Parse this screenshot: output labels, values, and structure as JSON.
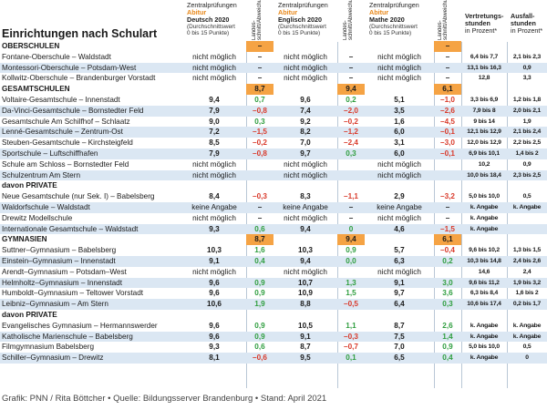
{
  "title": "Einrichtungen nach Schulart",
  "headers": {
    "deutsch": {
      "l1": "Zentralprüfungen",
      "l2": "Abitur",
      "l3": "Deutsch 2020",
      "l4": "(Durchschnittswert",
      "l5": "0 bis 15 Punkte)"
    },
    "englisch": {
      "l1": "Zentralprüfungen",
      "l2": "Abitur",
      "l3": "Englisch 2020",
      "l4": "(Durchschnittswert",
      "l5": "0 bis 15 Punkte)"
    },
    "mathe": {
      "l1": "Zentralprüfungen",
      "l2": "Abitur",
      "l3": "Mathe 2020",
      "l4": "(Durchschnittswert",
      "l5": "0 bis 15 Punkte)"
    },
    "deviation": "Landes-schnitt/Abweichung",
    "vertretung": {
      "l1": "Vertretungs-",
      "l2": "stunden",
      "l3": "in Prozent*"
    },
    "ausfall": {
      "l1": "Ausfall-",
      "l2": "stunden",
      "l3": "in Prozent*"
    }
  },
  "rows": [
    {
      "type": "section",
      "name": "OBERSCHULEN",
      "d": "",
      "dd": "–",
      "e": "",
      "ed": "",
      "m": "",
      "md": "–",
      "v": "",
      "a": "",
      "box": [
        true,
        false,
        true
      ]
    },
    {
      "type": "row",
      "name": "Fontane-Oberschule – Waldstadt",
      "d": "nicht möglich",
      "dd": "–",
      "e": "nicht möglich",
      "ed": "–",
      "m": "nicht möglich",
      "md": "–",
      "v": "6,4 bis 7,7",
      "a": "2,1 bis 2,3"
    },
    {
      "type": "row",
      "name": "Montessori-Oberschule – Potsdam-West",
      "d": "nicht möglich",
      "dd": "–",
      "e": "nicht möglich",
      "ed": "–",
      "m": "nicht möglich",
      "md": "–",
      "v": "13,1 bis 16,3",
      "a": "0,9"
    },
    {
      "type": "row",
      "name": "Kollwitz-Oberschule – Brandenburger Vorstadt",
      "d": "nicht möglich",
      "dd": "–",
      "e": "nicht möglich",
      "ed": "–",
      "m": "nicht möglich",
      "md": "–",
      "v": "12,8",
      "a": "3,3"
    },
    {
      "type": "section",
      "name": "GESAMTSCHULEN",
      "d": "",
      "dd": "8,7",
      "e": "",
      "ed": "9,4",
      "m": "",
      "md": "6,1",
      "v": "",
      "a": "",
      "box": [
        true,
        true,
        true
      ]
    },
    {
      "type": "row",
      "name": "Voltaire-Gesamtschule – Innenstadt",
      "d": "9,4",
      "dd": "0,7",
      "e": "9,6",
      "ed": "0,2",
      "m": "5,1",
      "md": "–1,0",
      "v": "3,3 bis 6,9",
      "a": "1,2 bis 1,8"
    },
    {
      "type": "row",
      "name": "Da-Vinci-Gesamtschule – Bornstedter Feld",
      "d": "7,9",
      "dd": "–0,8",
      "e": "7,4",
      "ed": "–2,0",
      "m": "3,5",
      "md": "–2,6",
      "v": "7,9 bis 8",
      "a": "2,0 bis 2,1"
    },
    {
      "type": "row",
      "name": "Gesamtschule Am Schilfhof – Schlaatz",
      "d": "9,0",
      "dd": "0,3",
      "e": "9,2",
      "ed": "–0,2",
      "m": "1,6",
      "md": "–4,5",
      "v": "9 bis 14",
      "a": "1,9"
    },
    {
      "type": "row",
      "name": "Lenné-Gesamtschule – Zentrum-Ost",
      "d": "7,2",
      "dd": "–1,5",
      "e": "8,2",
      "ed": "–1,2",
      "m": "6,0",
      "md": "–0,1",
      "v": "12,1 bis 12,9",
      "a": "2,1 bis 2,4"
    },
    {
      "type": "row",
      "name": "Steuben-Gesamtschule – Kirchsteigfeld",
      "d": "8,5",
      "dd": "–0,2",
      "e": "7,0",
      "ed": "–2,4",
      "m": "3,1",
      "md": "–3,0",
      "v": "12,0 bis 12,9",
      "a": "2,2 bis 2,5"
    },
    {
      "type": "row",
      "name": "Sportschule – Luftschiffhafen",
      "d": "7,9",
      "dd": "–0,8",
      "e": "9,7",
      "ed": "0,3",
      "m": "6,0",
      "md": "–0,1",
      "v": "6,9 bis 10,1",
      "a": "1,4 bis 2"
    },
    {
      "type": "row",
      "name": "Schule am Schloss – Bornstedter Feld",
      "d": "nicht möglich",
      "dd": "",
      "e": "nicht möglich",
      "ed": "",
      "m": "nicht möglich",
      "md": "",
      "v": "10,2",
      "a": "0,9"
    },
    {
      "type": "row",
      "name": "Schulzentrum Am Stern",
      "d": "nicht möglich",
      "dd": "",
      "e": "nicht möglich",
      "ed": "",
      "m": "nicht möglich",
      "md": "",
      "v": "10,0 bis 18,4",
      "a": "2,3 bis 2,5"
    },
    {
      "type": "section",
      "name": "davon PRIVATE",
      "d": "",
      "dd": "",
      "e": "",
      "ed": "",
      "m": "",
      "md": "",
      "v": "",
      "a": ""
    },
    {
      "type": "row",
      "name": "Neue Gesamtschule (nur Sek. I) – Babelsberg",
      "d": "8,4",
      "dd": "–0,3",
      "e": "8,3",
      "ed": "–1,1",
      "m": "2,9",
      "md": "–3,2",
      "v": "5,0 bis 10,0",
      "a": "0,5"
    },
    {
      "type": "row",
      "name": "Waldorfschule – Waldstadt",
      "d": "keine Angabe",
      "dd": "–",
      "e": "keine Angabe",
      "ed": "–",
      "m": "keine Angabe",
      "md": "–",
      "v": "k. Angabe",
      "a": "k. Angabe"
    },
    {
      "type": "row",
      "name": "Drewitz Modellschule",
      "d": "nicht möglich",
      "dd": "–",
      "e": "nicht möglich",
      "ed": "–",
      "m": "nicht möglich",
      "md": "–",
      "v": "k. Angabe",
      "a": ""
    },
    {
      "type": "row",
      "name": "Internationale Gesamtschule – Waldstadt",
      "d": "9,3",
      "dd": "0,6",
      "e": "9,4",
      "ed": "0",
      "m": "4,6",
      "md": "–1,5",
      "v": "k. Angabe",
      "a": ""
    },
    {
      "type": "section",
      "name": "GYMNASIEN",
      "d": "",
      "dd": "8,7",
      "e": "",
      "ed": "9,4",
      "m": "",
      "md": "6,1",
      "v": "",
      "a": "",
      "box": [
        true,
        true,
        true
      ]
    },
    {
      "type": "row",
      "name": "Suttner–Gymnasium – Babelsberg",
      "d": "10,3",
      "dd": "1,6",
      "e": "10,3",
      "ed": "0,9",
      "m": "5,7",
      "md": "–0,4",
      "v": "9,6 bis 10,2",
      "a": "1,3 bis 1,5"
    },
    {
      "type": "row",
      "name": "Einstein–Gymnasium – Innenstadt",
      "d": "9,1",
      "dd": "0,4",
      "e": "9,4",
      "ed": "0,0",
      "m": "6,3",
      "md": "0,2",
      "v": "10,3 bis 14,8",
      "a": "2,4 bis 2,6"
    },
    {
      "type": "row",
      "name": "Arendt–Gymnasium – Potsdam–West",
      "d": "nicht möglich",
      "dd": "",
      "e": "nicht möglich",
      "ed": "",
      "m": "nicht möglich",
      "md": "",
      "v": "14,6",
      "a": "2,4"
    },
    {
      "type": "row",
      "name": "Helmholtz–Gymnasium – Innenstadt",
      "d": "9,6",
      "dd": "0,9",
      "e": "10,7",
      "ed": "1,3",
      "m": "9,1",
      "md": "3,0",
      "v": "9,6 bis 11,2",
      "a": "1,9 bis 3,2"
    },
    {
      "type": "row",
      "name": "Humboldt–Gymnasium – Teltower Vorstadt",
      "d": "9,6",
      "dd": "0,9",
      "e": "10,9",
      "ed": "1,5",
      "m": "9,7",
      "md": "3,6",
      "v": "6,3 bis 8,4",
      "a": "1,6 bis 2"
    },
    {
      "type": "row",
      "name": "Leibniz–Gymnasium – Am Stern",
      "d": "10,6",
      "dd": "1,9",
      "e": "8,8",
      "ed": "–0,5",
      "m": "6,4",
      "md": "0,3",
      "v": "10,6 bis 17,4",
      "a": "0,2 bis 1,7"
    },
    {
      "type": "section",
      "name": "davon PRIVATE",
      "d": "",
      "dd": "",
      "e": "",
      "ed": "",
      "m": "",
      "md": "",
      "v": "",
      "a": ""
    },
    {
      "type": "row",
      "name": "Evangelisches Gymnasium – Hermannswerder",
      "d": "9,6",
      "dd": "0,9",
      "e": "10,5",
      "ed": "1,1",
      "m": "8,7",
      "md": "2,6",
      "v": "k. Angabe",
      "a": "k. Angabe"
    },
    {
      "type": "row",
      "name": "Katholische Marienschule – Babelsberg",
      "d": "9,6",
      "dd": "0,9",
      "e": "9,1",
      "ed": "–0,3",
      "m": "7,5",
      "md": "1,4",
      "v": "k. Angabe",
      "a": "k. Angabe"
    },
    {
      "type": "row",
      "name": "Filmgymnasium Babelsberg",
      "d": "9,3",
      "dd": "0,6",
      "e": "8,7",
      "ed": "–0,7",
      "m": "7,0",
      "md": "0,9",
      "v": "5,0 bis 10,0",
      "a": "0,5"
    },
    {
      "type": "row",
      "name": "Schiller–Gymnasium – Drewitz",
      "d": "8,1",
      "dd": "–0,6",
      "e": "9,5",
      "ed": "0,1",
      "m": "6,5",
      "md": "0,4",
      "v": "k. Angabe",
      "a": "0"
    }
  ],
  "footer": "Grafik: PNN / Rita Böttcher • Quelle:  Bildungsserver Brandenburg • Stand: April 2021",
  "colors": {
    "positive": "#2f9e3f",
    "negative": "#d93a2b",
    "highlight": "#f5a344",
    "stripe": "#dbe7f3"
  }
}
